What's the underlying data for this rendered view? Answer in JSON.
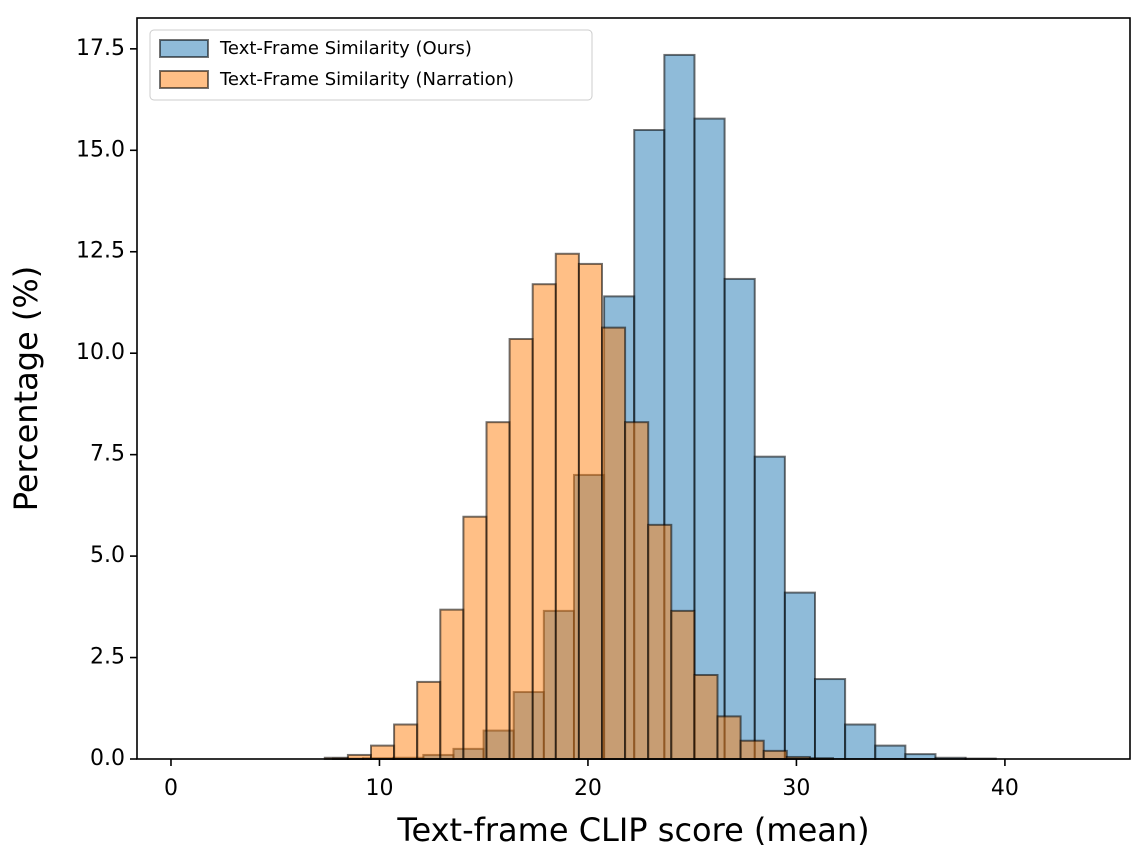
{
  "chart_data": {
    "type": "histogram",
    "xlabel": "Text-frame CLIP score (mean)",
    "ylabel": "Percentage (%)",
    "series": [
      {
        "name": "Text-Frame Similarity (Ours)",
        "color": "#1f77b4",
        "bins": [
          1.99,
          3.435,
          4.88,
          6.325,
          7.77,
          9.215,
          10.66,
          12.105,
          13.55,
          14.995,
          16.44,
          17.885,
          19.33,
          20.775,
          22.22,
          23.665,
          25.11,
          26.555,
          28.0,
          29.445,
          30.89,
          32.335,
          33.78,
          35.225,
          36.67,
          38.115,
          39.56,
          41.005,
          42.45,
          43.895
        ],
        "values": [
          0,
          0,
          0,
          0,
          0.01,
          0.02,
          0.03,
          0.1,
          0.25,
          0.7,
          1.65,
          3.65,
          7.0,
          11.4,
          15.5,
          17.35,
          15.78,
          11.83,
          7.45,
          4.1,
          1.97,
          0.85,
          0.33,
          0.12,
          0.03,
          0.01,
          0,
          0,
          0
        ]
      },
      {
        "name": "Text-Frame Similarity (Narration)",
        "color": "#ff7f0e",
        "bins": [
          0.73,
          1.838,
          2.946,
          4.054,
          5.162,
          6.27,
          7.378,
          8.486,
          9.594,
          10.702,
          11.81,
          12.918,
          14.026,
          15.134,
          16.242,
          17.35,
          18.458,
          19.566,
          20.674,
          21.782,
          22.89,
          23.998,
          25.106,
          26.214,
          27.322,
          28.43,
          29.538,
          30.646,
          31.754,
          32.862,
          33.97
        ],
        "values": [
          0,
          0,
          0,
          0,
          0,
          0,
          0.03,
          0.1,
          0.33,
          0.85,
          1.9,
          3.68,
          5.97,
          8.3,
          10.35,
          11.7,
          12.45,
          12.2,
          10.63,
          8.3,
          5.77,
          3.65,
          2.07,
          1.05,
          0.45,
          0.2,
          0.05,
          0.02,
          0,
          0
        ]
      }
    ],
    "xlim": [
      -1.63,
      46.0
    ],
    "ylim": [
      0,
      18.26
    ],
    "xticks": [
      0,
      10,
      20,
      30,
      40
    ],
    "yticks": [
      {
        "value": 0,
        "label": "0.0"
      },
      2.5,
      {
        "value": 5,
        "label": "5.0"
      },
      7.5,
      {
        "value": 10,
        "label": "10.0"
      },
      12.5,
      {
        "value": 15,
        "label": "15.0"
      },
      17.5
    ],
    "legend": "upper left",
    "alpha": 0.5
  }
}
